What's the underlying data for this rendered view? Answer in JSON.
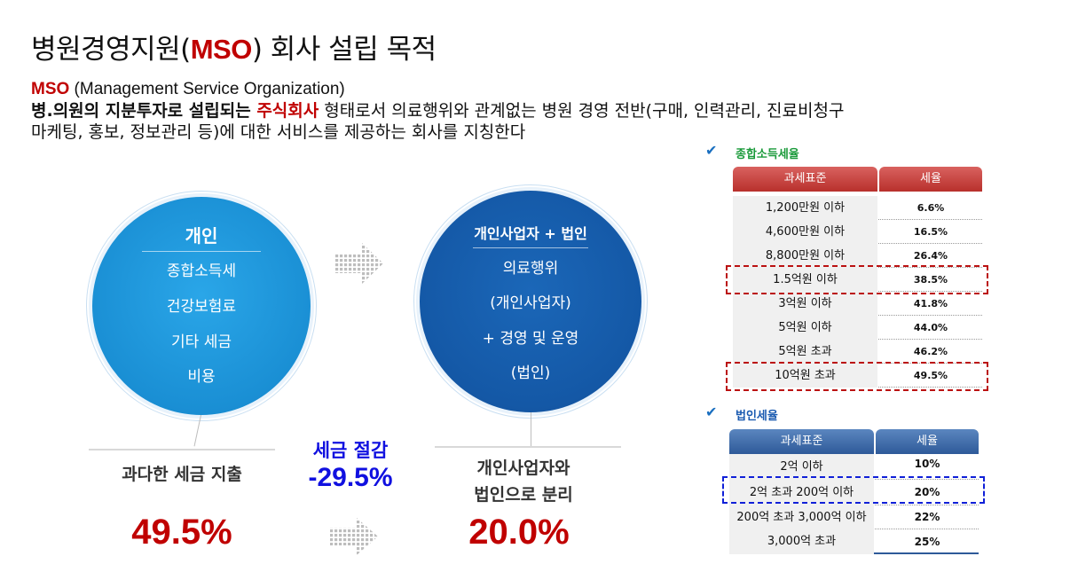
{
  "title": {
    "prefix": "병원경영지원(",
    "accent": "MSO",
    "suffix": ") 회사 설립 목적"
  },
  "definition": {
    "mso": "MSO",
    "mso_full": " (Management Service Organization)",
    "line2_bold": "병.의원의 지분투자로 설립되는 ",
    "line2_red": "주식회사",
    "line2_rest": " 형태로서 의료행위와 관계없는 병원 경영 전반(구매, 인력관리, 진료비청구",
    "line3": "마케팅, 홍보, 정보관리 등)에 대한 서비스를 제공하는 회사를 지칭한다"
  },
  "left_circle": {
    "head": "개인",
    "items": [
      "종합소득세",
      "건강보험료",
      "기타 세금",
      "비용"
    ]
  },
  "right_circle": {
    "head": "개인사업자 + 법인",
    "items": [
      "의료행위",
      "(개인사업자)",
      "+ 경영 및 운영",
      "(법인)"
    ]
  },
  "left_label": "과다한 세금 지출",
  "left_value": "49.5%",
  "saving": {
    "line1": "세금 절감",
    "line2": "-29.5%"
  },
  "right_label": {
    "line1": "개인사업자와",
    "line2": "법인으로 분리"
  },
  "right_value": "20.0%",
  "income_tax": {
    "section_title": "종합소득세율",
    "headers": [
      "과세표준",
      "세율"
    ],
    "rows": [
      {
        "base": "1,200만원 이하",
        "rate": "6.6%"
      },
      {
        "base": "4,600만원 이하",
        "rate": "16.5%"
      },
      {
        "base": "8,800만원 이하",
        "rate": "26.4%"
      },
      {
        "base": "1.5억원 이하",
        "rate": "38.5%"
      },
      {
        "base": "3억원 이하",
        "rate": "41.8%"
      },
      {
        "base": "5억원 이하",
        "rate": "44.0%"
      },
      {
        "base": "5억원 초과",
        "rate": "46.2%"
      },
      {
        "base": "10억원 초과",
        "rate": "49.5%"
      }
    ]
  },
  "corp_tax": {
    "section_title": "법인세율",
    "headers": [
      "과세표준",
      "세율"
    ],
    "rows": [
      {
        "base": "2억 이하",
        "rate": "10%"
      },
      {
        "base": "2억 초과 200억 이하",
        "rate": "20%"
      },
      {
        "base": "200억 초과 3,000억 이하",
        "rate": "22%"
      },
      {
        "base": "3,000억 초과",
        "rate": "25%"
      }
    ]
  },
  "colors": {
    "accent_red": "#c00000",
    "saving_blue": "#1010e0",
    "circle_light": "#1a8fd4",
    "circle_dark": "#1458a6"
  }
}
